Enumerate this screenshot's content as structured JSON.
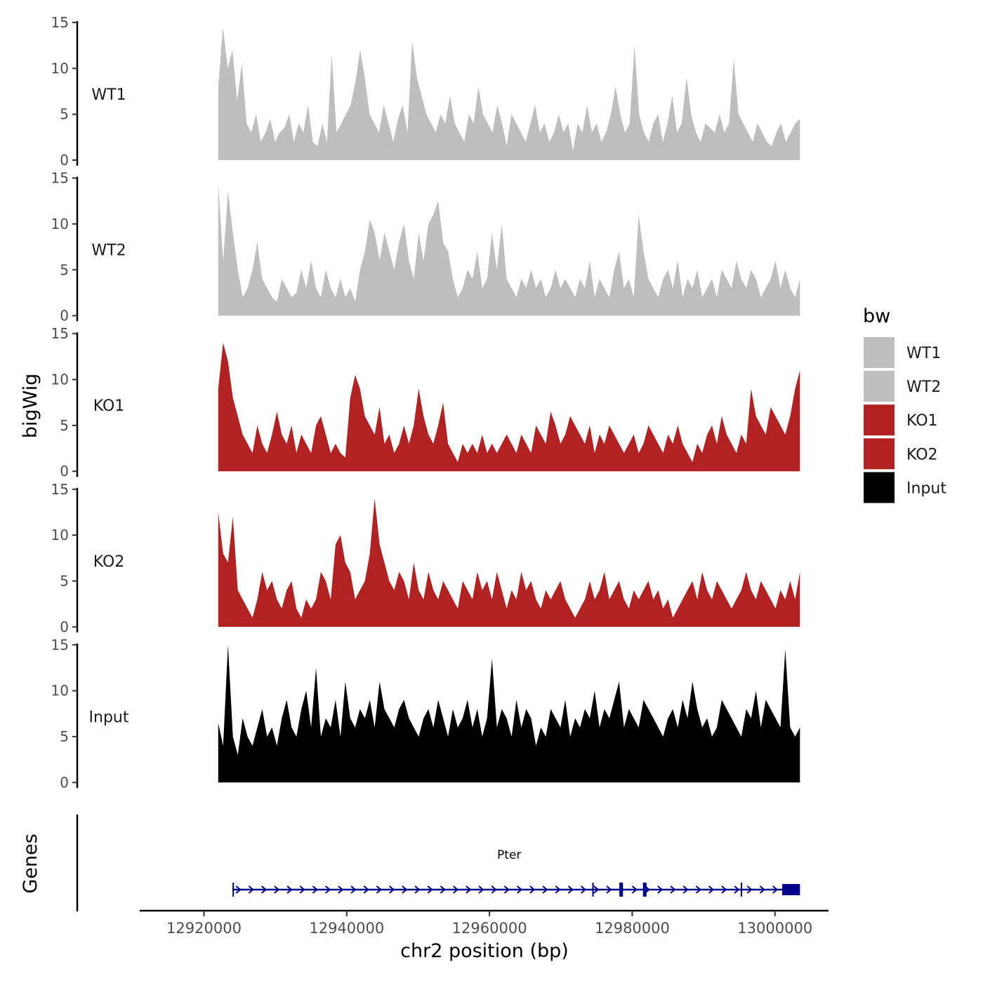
{
  "chart_data": {
    "type": "area",
    "xlabel": "chr2 position (bp)",
    "ylabel": "bigWig",
    "x_range": [
      12922000,
      13003500
    ],
    "xlim": [
      12911000,
      13007500
    ],
    "x_ticks": [
      12920000,
      12940000,
      12960000,
      12980000,
      13000000
    ],
    "x_tick_labels": [
      "12920000",
      "12940000",
      "12960000",
      "12980000",
      "13000000"
    ],
    "ylim": [
      0,
      15
    ],
    "y_ticks": [
      0,
      5,
      10,
      15
    ],
    "y_tick_labels": [
      "0",
      "5",
      "10",
      "15"
    ],
    "legend": {
      "title": "bw",
      "position": "right",
      "entries": [
        {
          "label": "WT1",
          "color": "#BEBEBE"
        },
        {
          "label": "WT2",
          "color": "#BEBEBE"
        },
        {
          "label": "KO1",
          "color": "#B22222"
        },
        {
          "label": "KO2",
          "color": "#B22222"
        },
        {
          "label": "Input",
          "color": "#000000"
        }
      ]
    },
    "series": [
      {
        "name": "WT1",
        "color": "#BEBEBE",
        "values": [
          8,
          14.5,
          10,
          12,
          6.5,
          10.5,
          4,
          3,
          5,
          2,
          3,
          4.5,
          2,
          3,
          3.5,
          5,
          2,
          4,
          3,
          6,
          2,
          1.5,
          4,
          2,
          11.5,
          3,
          4,
          5,
          6,
          8.5,
          12,
          9,
          5,
          4,
          3,
          6,
          4,
          2,
          4.5,
          6,
          3,
          13,
          9,
          7,
          5,
          4,
          3,
          5,
          4,
          7,
          4,
          3,
          2,
          5,
          4,
          8,
          5,
          4,
          3,
          6,
          4,
          1.5,
          5,
          4,
          3,
          2,
          4,
          6,
          3,
          4,
          2,
          3,
          5,
          3,
          4,
          1,
          4,
          3,
          6,
          3,
          4,
          2,
          3,
          5,
          8,
          5,
          3,
          4,
          12.5,
          5,
          3,
          2,
          4,
          5,
          2,
          4,
          7,
          3,
          4,
          9,
          5,
          3,
          2,
          4,
          3.5,
          3,
          5,
          3,
          4,
          11,
          5,
          4,
          3,
          2,
          4,
          3,
          2,
          1.5,
          3,
          4,
          2,
          3,
          4,
          4.5
        ]
      },
      {
        "name": "WT2",
        "color": "#BEBEBE",
        "values": [
          14.5,
          6,
          13.5,
          9,
          5,
          2,
          3,
          5,
          8,
          4,
          3,
          2,
          1.5,
          4,
          3,
          2,
          2.5,
          5,
          3,
          6,
          3,
          2,
          5,
          3,
          2,
          4,
          2,
          3,
          1.5,
          5,
          7,
          10.5,
          9,
          6,
          9,
          7,
          5,
          8,
          10,
          6,
          4,
          9,
          6,
          10,
          11,
          12.5,
          8,
          7,
          4,
          2,
          3,
          5,
          4,
          7,
          3,
          4,
          9,
          5,
          10,
          4,
          3,
          2,
          4,
          3,
          5,
          3,
          4,
          2,
          3,
          5,
          3,
          4,
          3,
          2,
          4,
          3,
          6,
          2,
          4,
          3,
          2,
          5,
          7,
          3,
          4,
          2,
          11,
          7,
          4,
          3,
          2,
          4,
          5,
          3,
          6,
          2,
          4,
          3,
          5,
          2,
          3,
          4,
          2,
          5,
          4,
          3,
          6,
          4,
          3,
          5,
          4,
          2,
          3,
          4,
          6,
          3,
          5,
          3,
          2,
          4
        ]
      },
      {
        "name": "KO1",
        "color": "#B22222",
        "values": [
          9,
          14,
          12,
          8,
          6,
          4,
          3,
          2,
          5,
          3,
          2,
          4,
          6.5,
          4,
          3,
          5,
          2,
          4,
          3,
          2,
          5,
          6,
          4,
          2,
          3,
          2,
          1.5,
          8,
          10.5,
          9,
          6,
          5,
          4,
          7,
          3,
          4,
          2,
          3,
          5,
          3,
          5,
          9,
          6,
          4,
          3,
          5,
          7.5,
          3,
          2,
          1,
          3,
          2,
          3,
          2,
          4,
          2,
          3,
          2,
          3,
          4,
          3,
          2,
          4,
          3,
          2,
          5,
          4,
          3,
          6.5,
          5,
          3,
          4,
          6,
          5,
          4,
          3,
          5,
          2,
          4,
          3,
          5,
          4,
          3,
          2,
          3,
          4,
          2,
          3,
          5,
          4,
          3,
          2,
          4,
          3,
          5,
          3,
          2,
          1,
          3,
          2,
          4,
          5,
          3,
          6,
          4,
          3,
          2,
          4,
          3,
          9,
          6,
          5,
          4,
          7,
          6,
          5,
          4,
          6,
          9,
          11
        ]
      },
      {
        "name": "KO2",
        "color": "#B22222",
        "values": [
          12.5,
          8,
          7,
          12,
          4,
          3,
          2,
          1,
          3,
          6,
          4,
          5,
          3,
          2,
          4,
          5,
          2,
          1,
          3,
          2,
          3,
          6,
          5,
          3,
          9,
          10,
          7,
          6,
          3,
          4,
          5,
          8,
          14,
          9,
          7,
          5,
          4,
          6,
          5,
          3,
          7,
          4,
          3,
          6,
          4,
          3,
          5,
          4,
          3,
          2,
          5,
          4,
          3,
          6,
          4,
          5,
          3,
          6,
          4,
          2,
          4,
          3,
          6,
          4,
          5,
          3,
          2,
          4,
          3,
          4,
          5,
          3,
          2,
          1,
          2,
          3,
          5,
          3,
          4,
          6,
          3,
          4,
          5,
          3,
          2,
          4,
          3,
          4,
          5,
          3,
          4,
          2,
          3,
          1,
          2,
          3,
          4,
          5,
          3,
          6,
          4,
          3,
          5,
          4,
          3,
          2,
          3,
          4,
          6,
          4,
          3,
          5,
          4,
          3,
          2,
          4,
          3,
          5,
          3,
          6
        ]
      },
      {
        "name": "Input",
        "color": "#000000",
        "values": [
          6.5,
          4,
          15,
          5,
          3,
          7,
          5,
          4,
          6,
          8,
          5,
          6,
          4,
          7,
          9,
          6,
          5,
          8,
          10,
          6,
          12.5,
          5,
          7,
          6,
          9,
          5,
          11,
          7,
          6,
          8,
          7,
          9,
          6,
          11,
          8,
          7,
          6,
          8,
          9,
          7,
          6,
          5,
          7,
          8,
          6,
          9,
          7,
          5,
          8,
          6,
          7,
          9,
          6,
          8,
          5,
          7,
          13.5,
          6,
          8,
          7,
          5,
          9,
          6,
          8,
          7,
          4,
          6,
          5,
          8,
          7,
          6,
          9,
          5,
          7,
          6,
          8,
          7,
          10,
          6,
          8,
          7,
          9,
          11,
          6,
          8,
          7,
          6,
          9,
          8,
          7,
          6,
          5,
          7,
          8,
          6,
          9,
          7,
          11,
          8,
          6,
          7,
          5,
          6,
          9,
          8,
          7,
          6,
          5,
          8,
          7,
          10,
          6,
          9,
          8,
          7,
          6,
          14.5,
          6,
          5,
          6
        ]
      }
    ],
    "genes_track": {
      "label": "Genes",
      "gene_name": "Pter",
      "strand": "+",
      "start": 12924000,
      "end": 13003500,
      "exons": [
        [
          12924000,
          12924200
        ],
        [
          12974400,
          12974500
        ],
        [
          12978200,
          12978700
        ],
        [
          12981500,
          12982000
        ],
        [
          12995200,
          12995300
        ],
        [
          13001000,
          13003500
        ]
      ],
      "color": "#00008B"
    }
  }
}
